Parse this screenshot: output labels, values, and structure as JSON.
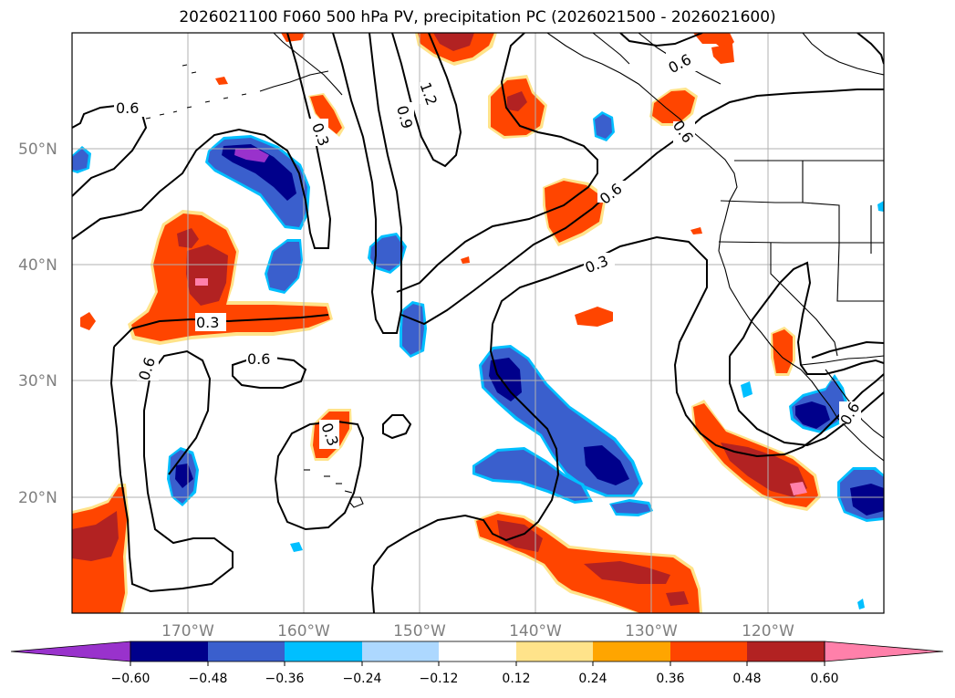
{
  "title": "2026021100 F060 500 hPa PV, precipitation PC (2026021500 - 2026021600)",
  "map": {
    "lat_labels": [
      "50°N",
      "40°N",
      "30°N",
      "20°N"
    ],
    "lon_labels": [
      "170°W",
      "160°W",
      "150°W",
      "140°W",
      "130°W",
      "120°W"
    ],
    "gridline_color": "#b0b0b0",
    "extent": {
      "lon_min": -180,
      "lon_max": -110,
      "lat_min": 10,
      "lat_max": 60
    },
    "contour_labels": [
      "0.6",
      "0.3",
      "0.9",
      "1.2",
      "0.6",
      "0.6",
      "0.3",
      "0.3",
      "0.6",
      "0.6",
      "0.3",
      "0.6",
      "0.6"
    ]
  },
  "colorbar": {
    "tick_labels": [
      "−0.60",
      "−0.48",
      "−0.36",
      "−0.24",
      "−0.12",
      "0.12",
      "0.24",
      "0.36",
      "0.48",
      "0.60"
    ],
    "colors": [
      "#9932cc",
      "#00008b",
      "#3a5fcd",
      "#00bfff",
      "#add8ff",
      "#ffffff",
      "#ffe38a",
      "#ffa500",
      "#ff4500",
      "#b22222",
      "#ff80aa"
    ],
    "extend": "both"
  }
}
